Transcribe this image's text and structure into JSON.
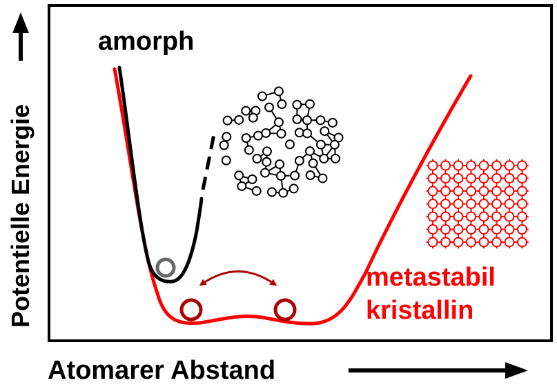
{
  "ylabel": "Potentielle Energie",
  "xlabel": "Atomarer Abstand",
  "label_amorphous": "amorph",
  "label_metastable_line1": "metastabil",
  "label_metastable_line2": "kristallin",
  "colors": {
    "amorphous": "#000000",
    "crystalline": "#ff0000",
    "dark_red": "#aa0000",
    "grey_ball": "#666666"
  },
  "icons": {
    "amorphous_structure": "random-network",
    "crystal_structure": "square-lattice",
    "transition": "double-headed-arrow"
  }
}
